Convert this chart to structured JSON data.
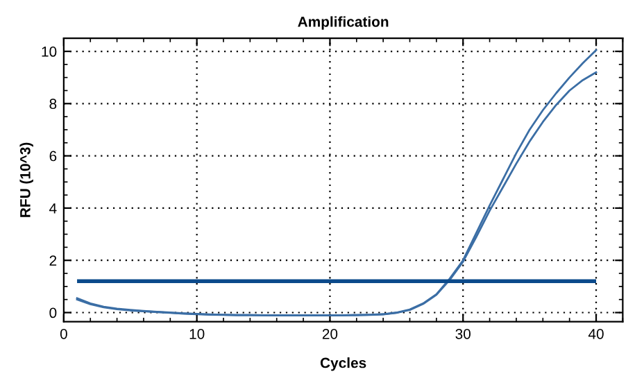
{
  "chart_data": {
    "type": "line",
    "title": "Amplification",
    "xlabel": "Cycles",
    "ylabel": "RFU (10^3)",
    "x": [
      1,
      2,
      3,
      4,
      5,
      6,
      7,
      8,
      9,
      10,
      11,
      12,
      13,
      14,
      15,
      16,
      17,
      18,
      19,
      20,
      21,
      22,
      23,
      24,
      25,
      26,
      27,
      28,
      29,
      30,
      31,
      32,
      33,
      34,
      35,
      36,
      37,
      38,
      39,
      40
    ],
    "series": [
      {
        "color": "#3b6ea5",
        "values": [
          0.55,
          0.35,
          0.22,
          0.15,
          0.1,
          0.06,
          0.03,
          0.0,
          -0.03,
          -0.05,
          -0.07,
          -0.08,
          -0.09,
          -0.09,
          -0.1,
          -0.1,
          -0.1,
          -0.1,
          -0.1,
          -0.1,
          -0.1,
          -0.09,
          -0.08,
          -0.06,
          0.0,
          0.12,
          0.35,
          0.7,
          1.3,
          2.0,
          3.05,
          4.1,
          5.1,
          6.1,
          7.0,
          7.75,
          8.4,
          9.0,
          9.55,
          10.05
        ]
      },
      {
        "color": "#3b6ea5",
        "values": [
          0.5,
          0.32,
          0.2,
          0.13,
          0.08,
          0.05,
          0.02,
          -0.01,
          -0.04,
          -0.06,
          -0.08,
          -0.09,
          -0.1,
          -0.1,
          -0.1,
          -0.11,
          -0.11,
          -0.11,
          -0.11,
          -0.11,
          -0.1,
          -0.1,
          -0.09,
          -0.07,
          -0.01,
          0.1,
          0.33,
          0.68,
          1.25,
          1.95,
          2.9,
          3.9,
          4.8,
          5.7,
          6.55,
          7.3,
          7.95,
          8.5,
          8.9,
          9.2
        ]
      }
    ],
    "ref_lines": [
      {
        "axis": "y",
        "value": 1.2,
        "color": "#0b4a8b"
      }
    ],
    "xlim": [
      0,
      42
    ],
    "ylim": [
      -0.35,
      10.5
    ],
    "xticks": [
      0,
      10,
      20,
      30,
      40
    ],
    "yticks": [
      0,
      2,
      4,
      6,
      8,
      10
    ],
    "grid": true,
    "marker": "none",
    "line_style": "solid",
    "legend": false
  }
}
